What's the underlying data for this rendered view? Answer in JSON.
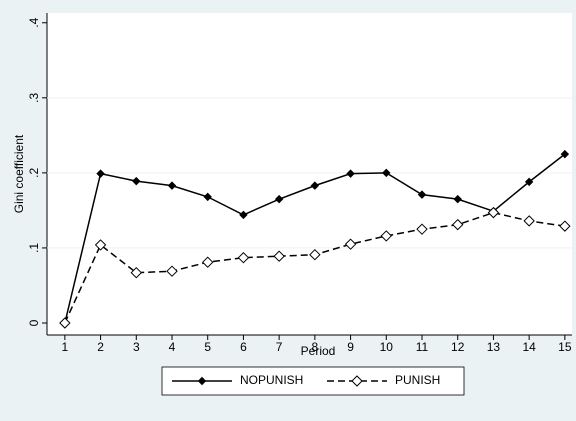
{
  "chart_data": {
    "type": "line",
    "xlabel": "Period",
    "ylabel": "Gini coefficient",
    "x": [
      1,
      2,
      3,
      4,
      5,
      6,
      7,
      8,
      9,
      10,
      11,
      12,
      13,
      14,
      15
    ],
    "series": [
      {
        "name": "NOPUNISH",
        "color": "#000000",
        "line_style": "solid",
        "marker": "filled-diamond",
        "values": [
          0,
          0.199,
          0.189,
          0.183,
          0.168,
          0.144,
          0.165,
          0.183,
          0.199,
          0.2,
          0.171,
          0.165,
          0.149,
          0.188,
          0.225
        ]
      },
      {
        "name": "PUNISH",
        "color": "#000000",
        "line_style": "dashed",
        "marker": "hollow-diamond",
        "values": [
          0,
          0.104,
          0.067,
          0.069,
          0.081,
          0.087,
          0.089,
          0.091,
          0.105,
          0.116,
          0.125,
          0.131,
          0.147,
          0.136,
          0.129
        ]
      }
    ],
    "xlim": [
      0.5,
      15.2
    ],
    "xticks": [
      1,
      2,
      3,
      4,
      5,
      6,
      7,
      8,
      9,
      10,
      11,
      12,
      13,
      14,
      15
    ],
    "ylim": [
      -0.016,
      0.413
    ],
    "yticks": [
      0,
      {
        "value": 0.1,
        "label": ".1"
      },
      {
        "value": 0.2,
        "label": ".2"
      },
      {
        "value": 0.3,
        "label": ".3"
      },
      {
        "value": 0.4,
        "label": ".4"
      }
    ],
    "grid": true,
    "legend": "bottom"
  }
}
